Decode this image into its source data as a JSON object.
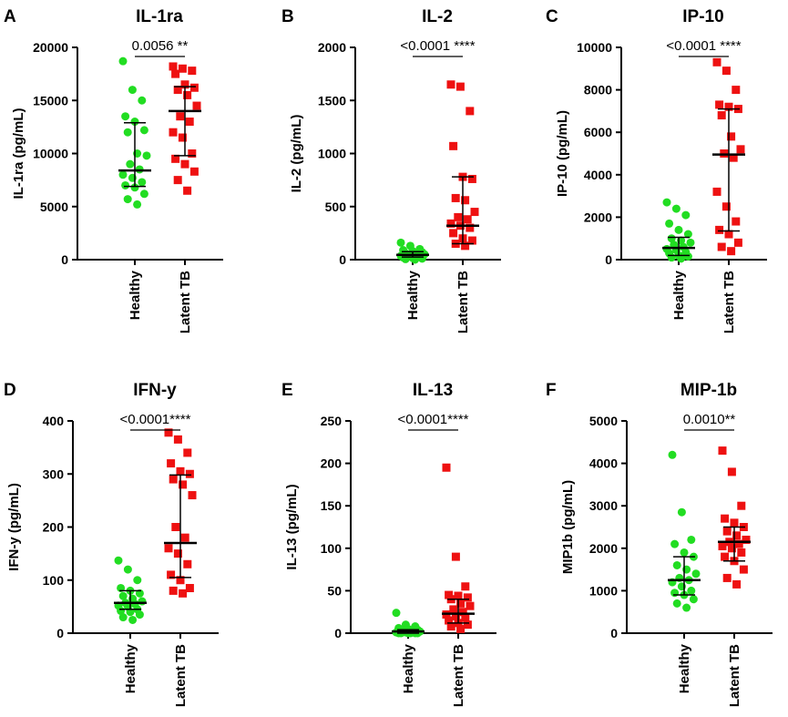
{
  "colors": {
    "healthy": "#22dd22",
    "latent_tb": "#ee1111",
    "axis": "#000000"
  },
  "chart_data": [
    {
      "type": "scatter",
      "letter": "A",
      "title": "IL-1ra",
      "ylabel": "IL-1ra (pg/mL)",
      "ylim": [
        0,
        20000
      ],
      "yticks": [
        0,
        5000,
        10000,
        15000,
        20000
      ],
      "categories": [
        "Healthy",
        "Latent TB"
      ],
      "significance": "0.0056 **",
      "series": [
        {
          "name": "Healthy",
          "median": 8400,
          "q1": 6900,
          "q3": 12900,
          "values": [
            18700,
            16000,
            15000,
            13500,
            13000,
            12200,
            12000,
            10000,
            9800,
            9000,
            8500,
            8000,
            7700,
            7300,
            7000,
            6800,
            6200,
            5700,
            5200
          ]
        },
        {
          "name": "Latent TB",
          "median": 14000,
          "q1": 9800,
          "q3": 16300,
          "values": [
            18200,
            18000,
            17800,
            17500,
            16500,
            16200,
            16000,
            15500,
            14500,
            13500,
            13000,
            12000,
            11500,
            10000,
            9500,
            9000,
            8300,
            7500,
            6500
          ]
        }
      ]
    },
    {
      "type": "scatter",
      "letter": "B",
      "title": "IL-2",
      "ylabel": "IL-2 (pg/mL)",
      "ylim": [
        0,
        2000
      ],
      "yticks": [
        0,
        500,
        1000,
        1500,
        2000
      ],
      "categories": [
        "Healthy",
        "Latent TB"
      ],
      "significance": "<0.0001 ****",
      "series": [
        {
          "name": "Healthy",
          "median": 45,
          "q1": 25,
          "q3": 75,
          "values": [
            160,
            130,
            100,
            90,
            80,
            70,
            60,
            55,
            50,
            45,
            40,
            35,
            30,
            25,
            20,
            15,
            10,
            5,
            0
          ]
        },
        {
          "name": "Latent TB",
          "median": 320,
          "q1": 150,
          "q3": 780,
          "values": [
            1650,
            1630,
            1400,
            1070,
            780,
            760,
            580,
            560,
            450,
            400,
            380,
            340,
            320,
            300,
            250,
            200,
            180,
            150,
            130
          ]
        }
      ]
    },
    {
      "type": "scatter",
      "letter": "C",
      "title": "IP-10",
      "ylabel": "IP-10 (pg/mL)",
      "ylim": [
        0,
        10000
      ],
      "yticks": [
        0,
        2000,
        4000,
        6000,
        8000,
        10000
      ],
      "categories": [
        "Healthy",
        "Latent TB"
      ],
      "significance": "<0.0001 ****",
      "series": [
        {
          "name": "Healthy",
          "median": 550,
          "q1": 200,
          "q3": 1050,
          "values": [
            2700,
            2400,
            2100,
            1700,
            1400,
            1200,
            1000,
            900,
            800,
            700,
            600,
            500,
            450,
            350,
            300,
            200,
            150,
            100,
            50
          ]
        },
        {
          "name": "Latent TB",
          "median": 4950,
          "q1": 1350,
          "q3": 7100,
          "values": [
            9300,
            8900,
            8000,
            7300,
            7200,
            7100,
            6800,
            5800,
            5200,
            5000,
            4800,
            3200,
            2500,
            1800,
            1400,
            1200,
            800,
            600,
            400
          ]
        }
      ]
    },
    {
      "type": "scatter",
      "letter": "D",
      "title": "IFN-y",
      "ylabel": "IFN-y (pg/mL)",
      "ylim": [
        0,
        400
      ],
      "yticks": [
        0,
        100,
        200,
        300,
        400
      ],
      "categories": [
        "Healthy",
        "Latent TB"
      ],
      "significance": "<0.0001****",
      "series": [
        {
          "name": "Healthy",
          "median": 57,
          "q1": 45,
          "q3": 80,
          "values": [
            137,
            120,
            100,
            85,
            80,
            75,
            70,
            65,
            60,
            57,
            55,
            52,
            50,
            45,
            42,
            40,
            35,
            30,
            25
          ]
        },
        {
          "name": "Latent TB",
          "median": 170,
          "q1": 105,
          "q3": 298,
          "values": [
            378,
            365,
            340,
            320,
            305,
            300,
            290,
            280,
            260,
            200,
            180,
            160,
            150,
            130,
            110,
            100,
            85,
            80,
            75
          ]
        }
      ]
    },
    {
      "type": "scatter",
      "letter": "E",
      "title": "IL-13",
      "ylabel": "IL-13 (pg/mL)",
      "ylim": [
        0,
        250
      ],
      "yticks": [
        0,
        50,
        100,
        150,
        200,
        250
      ],
      "categories": [
        "Healthy",
        "Latent TB"
      ],
      "significance": "<0.0001****",
      "series": [
        {
          "name": "Healthy",
          "median": 2,
          "q1": 0,
          "q3": 4,
          "values": [
            24,
            10,
            8,
            6,
            5,
            4,
            3,
            3,
            2,
            2,
            1,
            1,
            1,
            0,
            0,
            0,
            0,
            0,
            0
          ]
        },
        {
          "name": "Latent TB",
          "median": 23,
          "q1": 12,
          "q3": 40,
          "values": [
            195,
            90,
            55,
            45,
            44,
            42,
            40,
            35,
            32,
            28,
            25,
            22,
            20,
            18,
            15,
            12,
            10,
            8,
            5
          ]
        }
      ]
    },
    {
      "type": "scatter",
      "letter": "F",
      "title": "MIP-1b",
      "ylabel": "MIP1b (pg/mL)",
      "ylim": [
        0,
        5000
      ],
      "yticks": [
        0,
        1000,
        2000,
        3000,
        4000,
        5000
      ],
      "categories": [
        "Healthy",
        "Latent TB"
      ],
      "significance": "0.0010**",
      "series": [
        {
          "name": "Healthy",
          "median": 1250,
          "q1": 900,
          "q3": 1800,
          "values": [
            4200,
            2850,
            2200,
            2100,
            1900,
            1800,
            1600,
            1500,
            1400,
            1300,
            1250,
            1200,
            1100,
            1000,
            950,
            900,
            800,
            700,
            600
          ]
        },
        {
          "name": "Latent TB",
          "median": 2150,
          "q1": 1700,
          "q3": 2500,
          "values": [
            4300,
            3800,
            3000,
            2700,
            2600,
            2500,
            2400,
            2300,
            2200,
            2150,
            2100,
            2050,
            2000,
            1900,
            1800,
            1700,
            1500,
            1300,
            1150
          ]
        }
      ]
    }
  ]
}
